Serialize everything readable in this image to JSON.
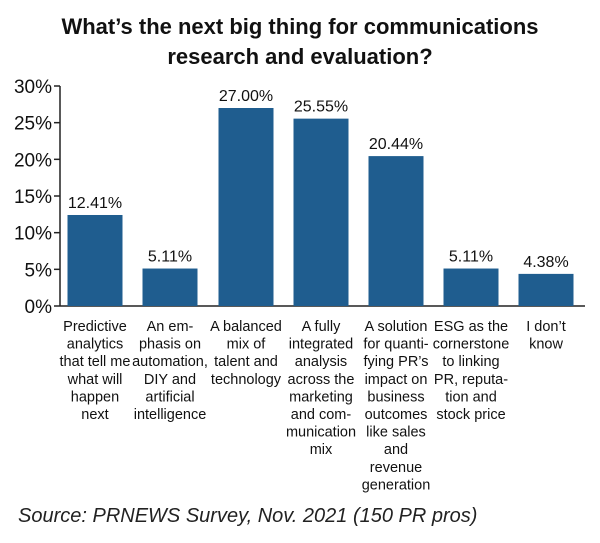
{
  "chart_data": {
    "type": "bar",
    "title_lines": [
      "What’s the next big thing for communications",
      "research and evaluation?"
    ],
    "categories": [
      [
        "Predictive",
        "analytics",
        "that tell me",
        "what will",
        "happen",
        "next"
      ],
      [
        "An em-",
        "phasis on",
        "automation,",
        "DIY and",
        "artificial",
        "intelligence"
      ],
      [
        "A balanced",
        "mix of",
        "talent and",
        "technology"
      ],
      [
        "A fully",
        "integrated",
        "analysis",
        "across the",
        "marketing",
        "and com-",
        "munication",
        "mix"
      ],
      [
        "A solution",
        "for quanti-",
        "fying PR’s",
        "impact on",
        "business",
        "outcomes",
        "like sales",
        "and",
        "revenue",
        "generation"
      ],
      [
        "ESG as the",
        "cornerstone",
        "to linking",
        "PR, reputa-",
        "tion and",
        "stock price"
      ],
      [
        "I don’t",
        "know"
      ]
    ],
    "values": [
      12.41,
      5.11,
      27.0,
      25.55,
      20.44,
      5.11,
      4.38
    ],
    "value_labels": [
      "12.41%",
      "5.11%",
      "27.00%",
      "25.55%",
      "20.44%",
      "5.11%",
      "4.38%"
    ],
    "yticks": [
      "0%",
      "5%",
      "10%",
      "15%",
      "20%",
      "25%",
      "30%"
    ],
    "ylim": [
      0,
      30
    ],
    "bar_color": "#1f5d8f",
    "grid": false,
    "source": "Source: PRNEWS Survey, Nov. 2021 (150 PR pros)"
  }
}
